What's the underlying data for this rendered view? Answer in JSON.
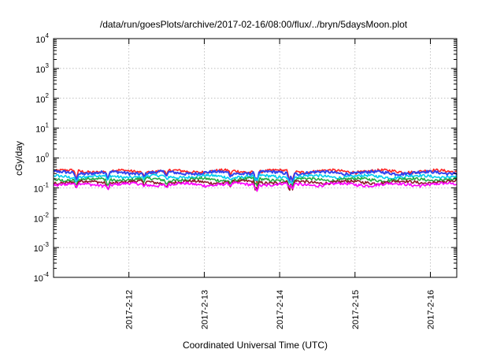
{
  "chart_data": {
    "type": "line",
    "title": "/data/run/goesPlots/archive/2017-02-16/08:00/flux/../bryn/5daysMoon.plot",
    "xlabel": "Coordinated Universal Time (UTC)",
    "ylabel": "cGy/day",
    "yscale": "log",
    "ylim": [
      0.0001,
      10000
    ],
    "xlim": [
      0,
      5.35
    ],
    "grid": true,
    "y_ticks": [
      {
        "base": "10",
        "exp": "-4",
        "value": 0.0001
      },
      {
        "base": "10",
        "exp": "-3",
        "value": 0.001
      },
      {
        "base": "10",
        "exp": "-2",
        "value": 0.01
      },
      {
        "base": "10",
        "exp": "-1",
        "value": 0.1
      },
      {
        "base": "10",
        "exp": "0",
        "value": 1
      },
      {
        "base": "10",
        "exp": "1",
        "value": 10
      },
      {
        "base": "10",
        "exp": "2",
        "value": 100
      },
      {
        "base": "10",
        "exp": "3",
        "value": 1000
      },
      {
        "base": "10",
        "exp": "4",
        "value": 10000
      }
    ],
    "x_ticks": [
      {
        "label": "2017-2-12",
        "value": 1
      },
      {
        "label": "2017-2-13",
        "value": 2
      },
      {
        "label": "2017-2-14",
        "value": 3
      },
      {
        "label": "2017-2-15",
        "value": 4
      },
      {
        "label": "2017-2-16",
        "value": 5
      }
    ],
    "series": [
      {
        "color": "#ff2222",
        "base": 0.36,
        "dip_factor": 0.85
      },
      {
        "color": "#3344ee",
        "base": 0.32,
        "dip_factor": 0.7
      },
      {
        "color": "#00ccee",
        "base": 0.24,
        "dip_factor": 0.6
      },
      {
        "color": "#22aa44",
        "base": 0.19,
        "dip_factor": 0.7
      },
      {
        "color": "#8b1a2b",
        "base": 0.155,
        "dip_factor": 0.75
      },
      {
        "color": "#ff00ff",
        "base": 0.13,
        "dip_factor": 0.45
      }
    ],
    "dips": [
      {
        "x": 0.3,
        "depth": 0.6
      },
      {
        "x": 0.72,
        "depth": 0.55
      },
      {
        "x": 1.2,
        "depth": 0.75
      },
      {
        "x": 1.5,
        "depth": 0.7
      },
      {
        "x": 2.35,
        "depth": 0.75
      },
      {
        "x": 2.68,
        "depth": 0.55
      },
      {
        "x": 2.7,
        "depth": 0.55
      },
      {
        "x": 3.13,
        "depth": 0.5
      },
      {
        "x": 3.17,
        "depth": 0.5
      }
    ]
  }
}
